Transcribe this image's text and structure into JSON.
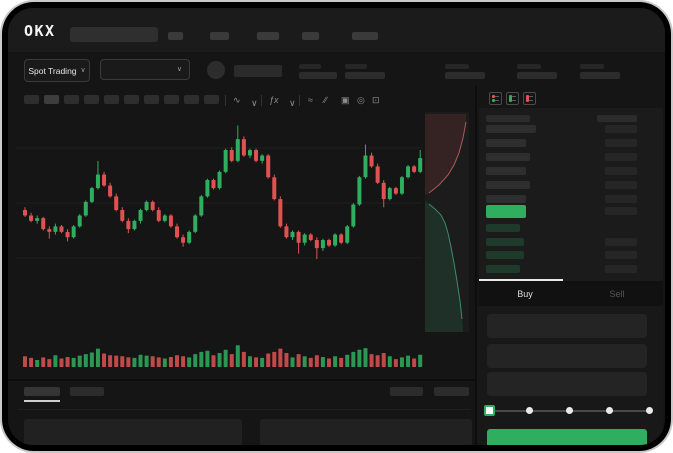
{
  "app": {
    "logo_text": "OKX"
  },
  "colors": {
    "green": "#2eae5e",
    "red": "#e05252",
    "background": "#151515",
    "header": "#1b1b1b",
    "skeleton": "#313131",
    "text_bright": "#e6e6e6",
    "text_dim": "#5c5c5c"
  },
  "market_selector": {
    "label": "Spot Trading",
    "chevron": "∨"
  },
  "pair_dropdown": {
    "chevron": "∨"
  },
  "chart_toolbar": {
    "icons": [
      {
        "name": "candle-style-icon",
        "glyph": "∿"
      },
      {
        "name": "chevron-down-icon",
        "glyph": "∨"
      },
      {
        "name": "indicators-fx-icon",
        "glyph": "ƒx"
      },
      {
        "name": "chevron-down-icon",
        "glyph": "∨"
      },
      {
        "name": "line-tool-icon",
        "glyph": "≈"
      },
      {
        "name": "draw-tool-icon",
        "glyph": "∕∕"
      },
      {
        "name": "screenshot-icon",
        "glyph": "▣"
      },
      {
        "name": "settings-icon",
        "glyph": "◎"
      },
      {
        "name": "fullscreen-icon",
        "glyph": "⊡"
      }
    ]
  },
  "order_book": {
    "view_icons": [
      "book-both-icon",
      "book-bids-icon",
      "book-asks-icon"
    ],
    "asks": [
      [
        50,
        32
      ],
      [
        40,
        32
      ],
      [
        44,
        32
      ],
      [
        40,
        32
      ],
      [
        44,
        32
      ],
      [
        40,
        32
      ]
    ],
    "last_price": {
      "highlight_color": "#2eae5e",
      "width": 40,
      "right_w": 32
    },
    "bids": [
      [
        34,
        0
      ],
      [
        38,
        32
      ],
      [
        38,
        32
      ],
      [
        34,
        32
      ]
    ]
  },
  "trade_panel": {
    "tabs": [
      {
        "label": "Buy",
        "active": true
      },
      {
        "label": "Sell",
        "active": false
      }
    ],
    "input_count": 3,
    "slider": {
      "steps": 5,
      "active_step": 0
    },
    "submit_color": "#2eae5e"
  },
  "chart_data": {
    "type": "candlestick",
    "title": "",
    "x_axis": "time (tick labels not visible)",
    "y_axis": "price (tick labels not visible, relative units 30-85)",
    "grid": "faint horizontal lines",
    "candles_ohlc": [
      [
        52,
        53,
        49.5,
        50
      ],
      [
        50,
        51,
        47.5,
        48
      ],
      [
        48,
        50,
        47,
        49
      ],
      [
        49,
        49.5,
        44.5,
        45
      ],
      [
        45,
        46,
        41.5,
        44
      ],
      [
        44,
        47,
        43,
        46
      ],
      [
        46,
        46.5,
        43.5,
        44
      ],
      [
        44,
        45,
        40.5,
        42
      ],
      [
        42,
        46.5,
        41.5,
        46
      ],
      [
        46,
        50.5,
        45.5,
        50
      ],
      [
        50,
        55.5,
        49.5,
        55
      ],
      [
        55,
        60.5,
        54.5,
        60
      ],
      [
        60,
        70,
        59.5,
        65
      ],
      [
        65,
        66,
        60.5,
        61
      ],
      [
        61,
        62,
        56.5,
        57
      ],
      [
        57,
        58,
        51.5,
        52
      ],
      [
        52,
        53,
        47.5,
        48
      ],
      [
        48,
        49,
        43.5,
        45
      ],
      [
        45,
        48.5,
        44.5,
        48
      ],
      [
        48,
        52.5,
        47,
        52
      ],
      [
        52,
        55.5,
        51.5,
        55
      ],
      [
        55,
        55.5,
        51.5,
        52
      ],
      [
        52,
        53,
        47.5,
        48
      ],
      [
        48,
        50.5,
        47.5,
        50
      ],
      [
        50,
        50.5,
        45.5,
        46
      ],
      [
        46,
        47,
        41.5,
        42
      ],
      [
        42,
        43,
        38.5,
        40
      ],
      [
        40,
        44.5,
        39.5,
        44
      ],
      [
        44,
        50.5,
        43.5,
        50
      ],
      [
        50,
        57.5,
        49.5,
        57
      ],
      [
        57,
        63.5,
        56.5,
        63
      ],
      [
        63,
        63.5,
        59.5,
        60
      ],
      [
        60,
        66.5,
        59.5,
        66
      ],
      [
        66,
        74.5,
        65.5,
        74
      ],
      [
        74,
        75,
        69.5,
        70
      ],
      [
        70,
        83,
        69.5,
        78
      ],
      [
        78,
        79,
        71.5,
        72
      ],
      [
        72,
        74.5,
        71,
        74
      ],
      [
        74,
        74.5,
        69.5,
        70
      ],
      [
        70,
        72.5,
        69,
        72
      ],
      [
        72,
        72.5,
        63.5,
        64
      ],
      [
        64,
        65,
        55.5,
        56
      ],
      [
        56,
        57,
        45.5,
        46
      ],
      [
        46,
        47,
        41.5,
        42
      ],
      [
        42,
        44.5,
        41,
        44
      ],
      [
        44,
        44.5,
        36,
        40
      ],
      [
        40,
        43.5,
        39,
        43
      ],
      [
        43,
        43.5,
        40.5,
        41
      ],
      [
        41,
        42,
        34,
        38
      ],
      [
        38,
        41.5,
        37,
        41
      ],
      [
        41,
        41.5,
        38.5,
        39
      ],
      [
        39,
        43.5,
        38.5,
        43
      ],
      [
        43,
        43.5,
        39.5,
        40
      ],
      [
        40,
        46.5,
        39.5,
        46
      ],
      [
        46,
        54.5,
        45.5,
        54
      ],
      [
        54,
        64.5,
        53.5,
        64
      ],
      [
        64,
        76,
        63.5,
        72
      ],
      [
        72,
        73,
        67.5,
        68
      ],
      [
        68,
        69,
        61.5,
        62
      ],
      [
        62,
        63,
        53,
        56
      ],
      [
        56,
        60.5,
        55.5,
        60
      ],
      [
        60,
        60.5,
        57.5,
        58
      ],
      [
        58,
        64.5,
        57.5,
        64
      ],
      [
        64,
        68.5,
        63.5,
        68
      ],
      [
        68,
        68.5,
        65.5,
        66
      ],
      [
        66,
        74,
        65.5,
        71
      ]
    ],
    "volume": [
      35,
      28,
      18,
      30,
      22,
      40,
      25,
      32,
      28,
      38,
      45,
      52,
      70,
      48,
      40,
      38,
      35,
      30,
      28,
      42,
      38,
      35,
      30,
      25,
      32,
      40,
      35,
      30,
      45,
      55,
      60,
      40,
      50,
      65,
      45,
      85,
      55,
      35,
      30,
      28,
      48,
      55,
      70,
      50,
      30,
      45,
      35,
      28,
      40,
      32,
      25,
      35,
      28,
      42,
      55,
      65,
      72,
      45,
      40,
      50,
      35,
      22,
      30,
      38,
      25,
      42
    ],
    "depth": {
      "note": "vertical depth chart right of candles; asks shaded red (top), bids shaded green (bottom)",
      "asks_area": [
        [
          417,
          6
        ],
        [
          458,
          6
        ],
        [
          458,
          14
        ],
        [
          455,
          30
        ],
        [
          451,
          45
        ],
        [
          446,
          57
        ],
        [
          440,
          67
        ],
        [
          431,
          77
        ],
        [
          421,
          85
        ],
        [
          417,
          87
        ]
      ],
      "asks_line": [
        [
          458,
          14
        ],
        [
          455,
          30
        ],
        [
          451,
          45
        ],
        [
          446,
          57
        ],
        [
          440,
          67
        ],
        [
          431,
          77
        ],
        [
          421,
          85
        ]
      ],
      "bids_area": [
        [
          417,
          93
        ],
        [
          421,
          96
        ],
        [
          427,
          101
        ],
        [
          433,
          107
        ],
        [
          437,
          115
        ],
        [
          440,
          125
        ],
        [
          443,
          139
        ],
        [
          446,
          155
        ],
        [
          449,
          173
        ],
        [
          452,
          193
        ],
        [
          454,
          211
        ],
        [
          455,
          224
        ],
        [
          417,
          224
        ]
      ],
      "bids_line": [
        [
          421,
          96
        ],
        [
          427,
          101
        ],
        [
          433,
          107
        ],
        [
          437,
          115
        ],
        [
          440,
          125
        ],
        [
          443,
          139
        ],
        [
          446,
          155
        ],
        [
          449,
          173
        ],
        [
          452,
          193
        ],
        [
          454,
          211
        ]
      ]
    }
  }
}
